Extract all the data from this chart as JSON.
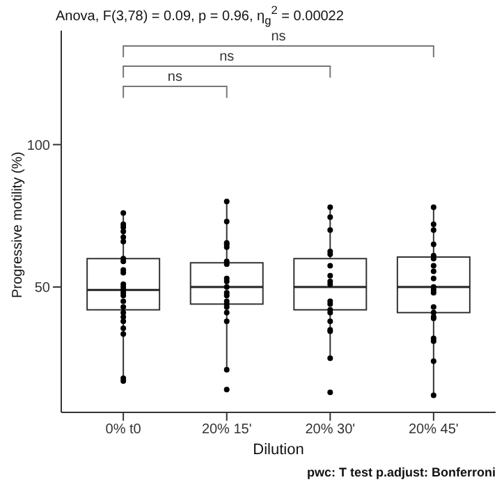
{
  "chart_data": {
    "type": "box",
    "title": "Anova, F(3,78) = 0.09, p = 0.96, η$_{g}$$^{2}$ = 0.00022",
    "xlabel": "Dilution",
    "ylabel": "Progressive motility (%)",
    "categories": [
      "0% t0",
      "20% 15'",
      "20% 30'",
      "20% 45'"
    ],
    "boxes": [
      {
        "low": 17,
        "q1": 42,
        "median": 49,
        "q3": 60,
        "high": 76
      },
      {
        "low": 21,
        "q1": 44,
        "median": 50,
        "q3": 58.5,
        "high": 80
      },
      {
        "low": 25,
        "q1": 42,
        "median": 50,
        "q3": 60,
        "high": 78
      },
      {
        "low": 12,
        "q1": 41,
        "median": 50,
        "q3": 60.5,
        "high": 78
      }
    ],
    "series": [
      {
        "type": "scatter",
        "color": "#000000",
        "x": [
          "0% t0",
          "0% t0",
          "0% t0",
          "0% t0",
          "0% t0",
          "0% t0",
          "0% t0",
          "0% t0",
          "0% t0",
          "0% t0",
          "0% t0",
          "0% t0",
          "0% t0",
          "0% t0",
          "0% t0",
          "0% t0",
          "0% t0",
          "0% t0",
          "0% t0",
          "0% t0",
          "0% t0",
          "0% t0",
          "0% t0",
          "0% t0",
          "20% 15'",
          "20% 15'",
          "20% 15'",
          "20% 15'",
          "20% 15'",
          "20% 15'",
          "20% 15'",
          "20% 15'",
          "20% 15'",
          "20% 15'",
          "20% 15'",
          "20% 15'",
          "20% 15'",
          "20% 15'",
          "20% 15'",
          "20% 15'",
          "20% 15'",
          "20% 15'",
          "20% 15'",
          "20% 30'",
          "20% 30'",
          "20% 30'",
          "20% 30'",
          "20% 30'",
          "20% 30'",
          "20% 30'",
          "20% 30'",
          "20% 30'",
          "20% 30'",
          "20% 30'",
          "20% 30'",
          "20% 30'",
          "20% 30'",
          "20% 30'",
          "20% 30'",
          "20% 30'",
          "20% 30'",
          "20% 45'",
          "20% 45'",
          "20% 45'",
          "20% 45'",
          "20% 45'",
          "20% 45'",
          "20% 45'",
          "20% 45'",
          "20% 45'",
          "20% 45'",
          "20% 45'",
          "20% 45'",
          "20% 45'",
          "20% 45'",
          "20% 45'",
          "20% 45'",
          "20% 45'",
          "20% 45'",
          "20% 45'",
          "20% 45'"
        ],
        "values": [
          76,
          72,
          71,
          69.5,
          67.5,
          66,
          60,
          59,
          56,
          55,
          51,
          50,
          49,
          48,
          47,
          45,
          43,
          41,
          39.5,
          38,
          35.5,
          33.5,
          18,
          17,
          80,
          73,
          65.5,
          65,
          64,
          59,
          58,
          53,
          52,
          50,
          48,
          47,
          45,
          44,
          43,
          41,
          38,
          21,
          14,
          78,
          74.5,
          70,
          62.5,
          61.5,
          57.5,
          54,
          52,
          51,
          45,
          44,
          42,
          41,
          38,
          35,
          34.5,
          25,
          13,
          78,
          72,
          70,
          65,
          61,
          60,
          57.5,
          55.5,
          53,
          50,
          49,
          48,
          43,
          41,
          39.5,
          39,
          32,
          31,
          24,
          12
        ]
      }
    ],
    "ylim": [
      6,
      140
    ],
    "yticks": [
      50,
      100
    ],
    "grid": false,
    "legend": false,
    "marker": "circle",
    "annotations": [
      "ns",
      "ns",
      "ns",
      "pwc: T test p.adjust: Bonferroni"
    ]
  }
}
